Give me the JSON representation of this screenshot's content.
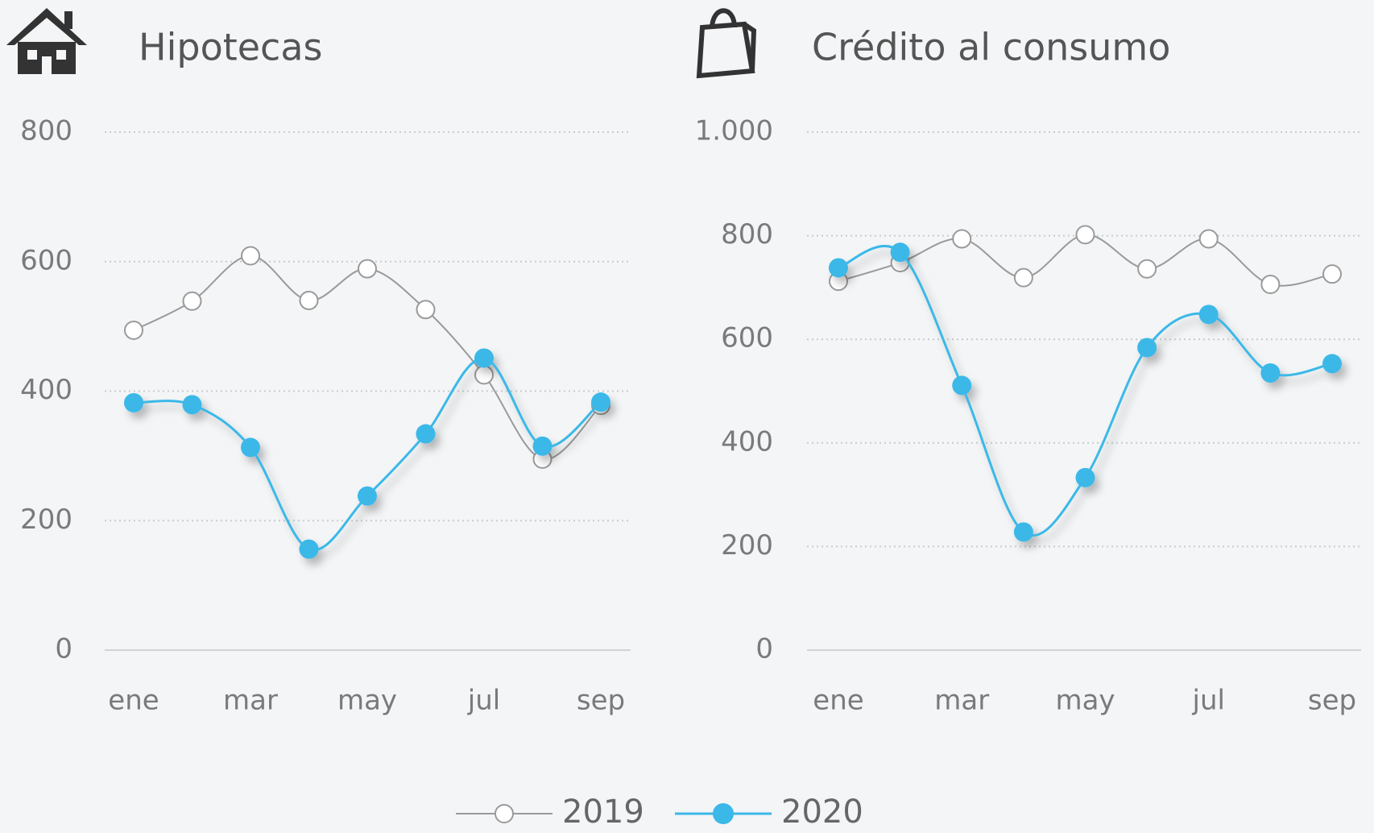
{
  "chart_data": [
    {
      "type": "line",
      "title": "Hipotecas",
      "categories": [
        "ene",
        null,
        "mar",
        null,
        "may",
        null,
        "jul",
        null,
        "sep"
      ],
      "series": [
        {
          "name": "2019",
          "color": "#9a9a9a",
          "values": [
            494,
            539,
            609,
            540,
            589,
            526,
            425,
            295,
            378
          ]
        },
        {
          "name": "2020",
          "color": "#3bb8e8",
          "values": [
            382,
            379,
            313,
            156,
            238,
            334,
            451,
            315,
            383
          ]
        }
      ],
      "ylim": [
        0,
        800
      ],
      "yticks": [
        0,
        200,
        400,
        600,
        800
      ],
      "grid": true
    },
    {
      "type": "line",
      "title": "Crédito al consumo",
      "categories": [
        "ene",
        null,
        "mar",
        null,
        "may",
        null,
        "jul",
        null,
        "sep"
      ],
      "series": [
        {
          "name": "2019",
          "color": "#9a9a9a",
          "values": [
            712,
            748,
            794,
            719,
            802,
            736,
            794,
            706,
            726
          ]
        },
        {
          "name": "2020",
          "color": "#3bb8e8",
          "values": [
            738,
            768,
            511,
            228,
            333,
            584,
            648,
            535,
            553
          ]
        }
      ],
      "ylim": [
        0,
        1000
      ],
      "yticks": [
        0,
        200,
        400,
        600,
        800,
        {
          "value": 1000,
          "label": "1.000"
        }
      ],
      "grid": true
    }
  ]
}
